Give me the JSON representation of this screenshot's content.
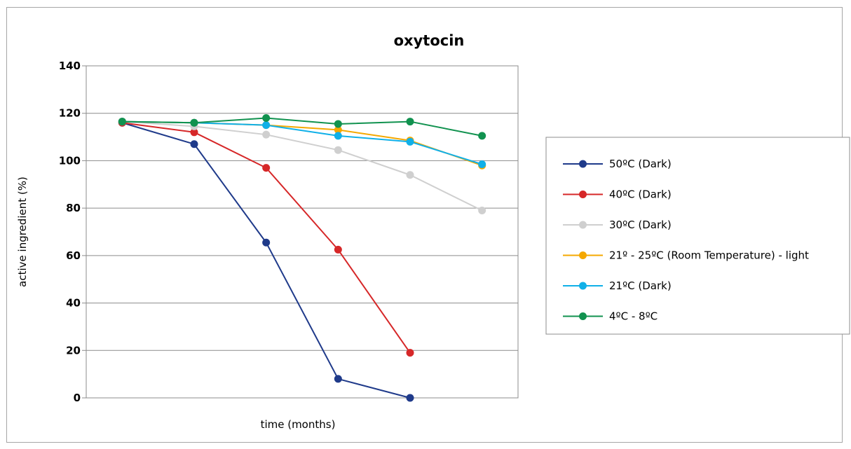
{
  "chart_data": {
    "type": "line",
    "title": "oxytocin",
    "xlabel": "time (months)",
    "ylabel": "active ingredient (%)",
    "ylim": [
      0,
      140
    ],
    "yticks": [
      "0",
      "20",
      "40",
      "60",
      "80",
      "100",
      "120",
      "140"
    ],
    "x_tick_labels_shown": false,
    "grid": "horizontal",
    "legend_position": "right",
    "series": [
      {
        "name": "50ºC (Dark)",
        "color": "#1f3a8a",
        "values": [
          116,
          107,
          65.5,
          8,
          0
        ]
      },
      {
        "name": "40ºC (Dark)",
        "color": "#d62728",
        "values": [
          116,
          112,
          97,
          62.5,
          19
        ]
      },
      {
        "name": "30ºC (Dark)",
        "color": "#cfcfcf",
        "values": [
          116.5,
          114.5,
          111,
          104.5,
          94,
          79
        ]
      },
      {
        "name": "21º - 25ºC (Room Temperature)  - light",
        "color": "#f5a800",
        "values": [
          116.5,
          116,
          115,
          113,
          108.5,
          98
        ]
      },
      {
        "name": "21ºC (Dark)",
        "color": "#10b0e8",
        "values": [
          116.5,
          116,
          115,
          110.5,
          108,
          98.5
        ]
      },
      {
        "name": "4ºC - 8ºC",
        "color": "#11924f",
        "values": [
          116.5,
          116,
          118,
          115.5,
          116.5,
          110.5
        ]
      }
    ]
  }
}
